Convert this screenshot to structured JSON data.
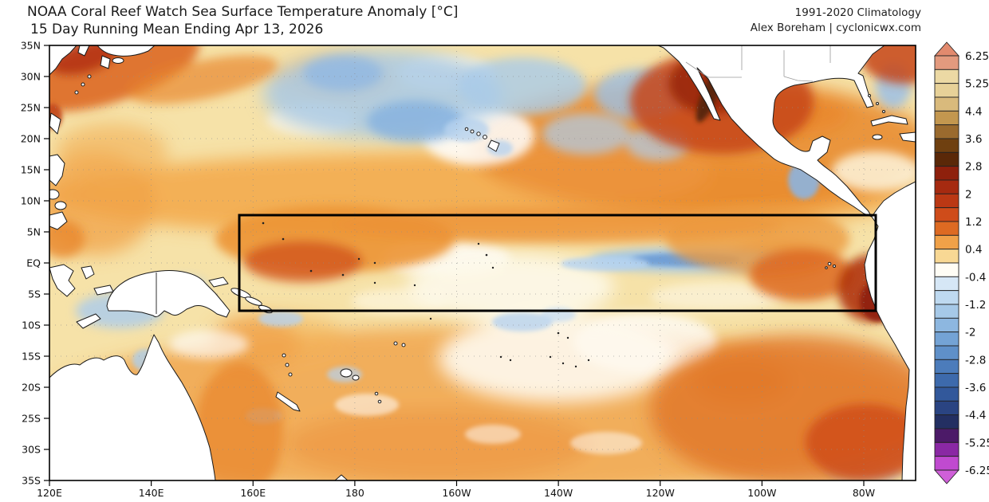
{
  "header": {
    "title_line1": "NOAA Coral Reef Watch Sea Surface Temperature Anomaly [°C]",
    "title_line2": "15 Day Running Mean Ending Apr 13, 2026",
    "climatology_label": "1991-2020 Climatology",
    "credit": "Alex Boreham | cyclonicwx.com"
  },
  "map": {
    "lat_ticks": [
      "35N",
      "30N",
      "25N",
      "20N",
      "15N",
      "10N",
      "5N",
      "EQ",
      "5S",
      "10S",
      "15S",
      "20S",
      "25S",
      "30S",
      "35S"
    ],
    "lon_ticks": [
      "120E",
      "140E",
      "160E",
      "180",
      "160W",
      "140W",
      "120W",
      "100W",
      "80W"
    ]
  },
  "colorbar": {
    "labels": [
      "6.25",
      "5.25",
      "4.4",
      "3.6",
      "2.8",
      "2",
      "1.2",
      "0.4",
      "-0.4",
      "-1.2",
      "-2",
      "-2.8",
      "-3.6",
      "-4.4",
      "-5.25",
      "-6.25"
    ],
    "segment_colors": [
      "#e39a7e",
      "#ecd9a4",
      "#e7d198",
      "#d9ba7c",
      "#c3974f",
      "#9a6a2e",
      "#6f4010",
      "#5a2808",
      "#8e200c",
      "#a62a10",
      "#bb3814",
      "#cf4c1a",
      "#dd6a22",
      "#f0a148",
      "#f8d894",
      "#fffdf5",
      "#d6e7f6",
      "#bed9f0",
      "#a6c9e8",
      "#8db7e0",
      "#74a3d5",
      "#5f90c9",
      "#4c7cbb",
      "#3d6aac",
      "#32589b",
      "#2a4482",
      "#232f62",
      "#4c1a68",
      "#8a28a4",
      "#c04ad0"
    ],
    "arrow_top_color": "#e28a6e",
    "arrow_bottom_color": "#cf5fd8"
  },
  "chart_data": {
    "type": "heatmap",
    "title": "NOAA Coral Reef Watch Sea Surface Temperature Anomaly [°C]",
    "subtitle": "15 Day Running Mean Ending Apr 13, 2026",
    "climatology_baseline": "1991-2020",
    "units": "°C",
    "x_ticks": [
      "120E",
      "140E",
      "160E",
      "180",
      "160W",
      "140W",
      "120W",
      "100W",
      "80W"
    ],
    "y_ticks": [
      "35N",
      "30N",
      "25N",
      "20N",
      "15N",
      "10N",
      "5N",
      "EQ",
      "5S",
      "10S",
      "15S",
      "20S",
      "25S",
      "30S",
      "35S"
    ],
    "colorbar_tick_values": [
      6.25,
      5.25,
      4.4,
      3.6,
      2.8,
      2,
      1.2,
      0.4,
      -0.4,
      -1.2,
      -2,
      -2.8,
      -3.6,
      -4.4,
      -5.25,
      -6.25
    ],
    "colorbar_range": [
      -6.25,
      6.25
    ],
    "grid": true,
    "legend_position": "right-colorbar",
    "highlighted_region": {
      "shape": "rectangle",
      "lon_span": "~157E to ~78W",
      "lat_span": "~7N to ~7S"
    },
    "features": [
      {
        "region": "Northwest / north-central Pacific (25N-35N)",
        "anomaly_c": -1.0,
        "note": "patchy cool anomalies mixed with near-normal water"
      },
      {
        "region": "Kuroshio region off Japan",
        "anomaly_c": 2.5,
        "note": "strong warm band along coast"
      },
      {
        "region": "North tropical band (5N-20N, basin-wide)",
        "anomaly_c": 1.2,
        "note": "broad warm band"
      },
      {
        "region": "Off Mexico, Baja California and Gulf of California",
        "anomaly_c": 3.6,
        "note": "strongest warm anomaly on map"
      },
      {
        "region": "Northeast corner near Gulf of Mexico / Atlantic",
        "anomaly_c": 2.2
      },
      {
        "region": "Hawaii vicinity",
        "anomaly_c": 0.0,
        "note": "near normal with small cool flecks"
      },
      {
        "region": "Western equatorial Pacific inside box (160E-170W)",
        "anomaly_c": 1.5
      },
      {
        "region": "Central equatorial Pacific (175W-110W, EQ-3N)",
        "anomaly_c": -0.8,
        "note": "narrow cool streak"
      },
      {
        "region": "Far-eastern equatorial Pacific / Peru-Ecuador coast",
        "anomaly_c": 2.6,
        "note": "dark warm blob at east end of box"
      },
      {
        "region": "South-central Pacific (10S-20S, 170W-140W)",
        "anomaly_c": 0.1,
        "note": "large near-normal white area"
      },
      {
        "region": "Subtropical South Pacific (20S-35S)",
        "anomaly_c": 1.5,
        "note": "widespread warm swirls, strongest southeast quadrant"
      },
      {
        "region": "Arafura Sea / Gulf of Carpentaria",
        "anomaly_c": -0.7
      }
    ]
  }
}
